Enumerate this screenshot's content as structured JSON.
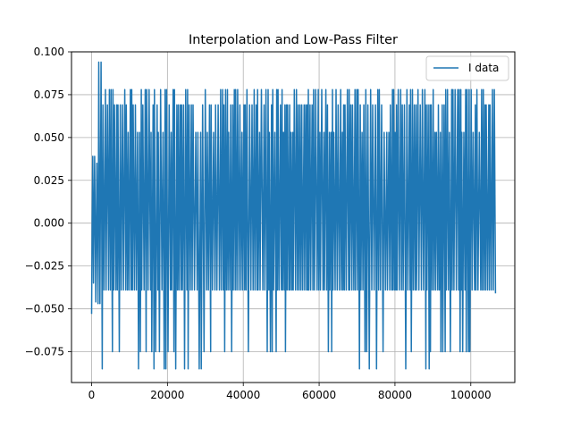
{
  "chart_data": {
    "type": "line",
    "title": "Interpolation and Low-Pass Filter",
    "xlabel": "",
    "ylabel": "",
    "xlim": [
      -5300,
      111600
    ],
    "ylim": [
      -0.093,
      0.1
    ],
    "grid": true,
    "legend": {
      "placement": "top-right",
      "entries": [
        "I data"
      ]
    },
    "x_ticks": [
      0,
      20000,
      40000,
      60000,
      80000,
      100000
    ],
    "x_tick_labels": [
      "0",
      "20000",
      "40000",
      "60000",
      "80000",
      "100000"
    ],
    "y_ticks": [
      -0.075,
      -0.05,
      -0.025,
      0.0,
      0.025,
      0.05,
      0.075,
      0.1
    ],
    "y_tick_labels": [
      "−0.075",
      "−0.050",
      "−0.025",
      "0.000",
      "0.025",
      "0.050",
      "0.075",
      "0.100"
    ],
    "series": [
      {
        "name": "I data",
        "color": "#1f77b4",
        "levels": {
          "peak_high": 0.094,
          "high": 0.078,
          "upper": 0.069,
          "mid_upper": 0.053,
          "low": -0.039,
          "lower": -0.075,
          "peak_low": -0.085
        },
        "x_start": 0,
        "x_end": 106500,
        "y_start": -0.053,
        "y_end": -0.041
      }
    ]
  }
}
